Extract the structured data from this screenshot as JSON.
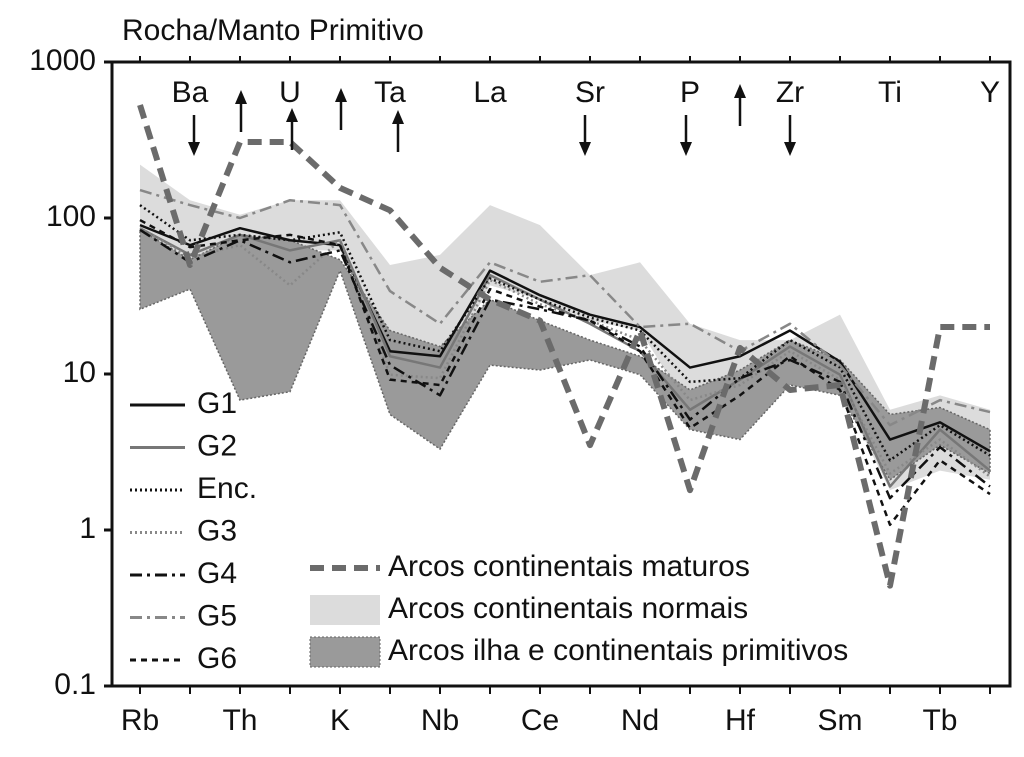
{
  "chart_data": {
    "type": "line",
    "y_label": "Rocha/Manto Primitivo",
    "log_scale": true,
    "categories": [
      "Rb",
      "Ba",
      "Th",
      "U",
      "K",
      "Ta",
      "Nb",
      "La",
      "Ce",
      "Sr",
      "Nd",
      "P",
      "Hf",
      "Zr",
      "Sm",
      "Ti",
      "Tb",
      "Y"
    ],
    "ylim": [
      0.1,
      1000
    ],
    "yticks": [
      0.1,
      1,
      10,
      100,
      1000
    ],
    "series": [
      {
        "name": "G1",
        "color": "#111111",
        "dash": "solid",
        "values": [
          90,
          67,
          86,
          72,
          67,
          14,
          13,
          46,
          32,
          24,
          20,
          11,
          13,
          19,
          12,
          3.8,
          4.9,
          3.2
        ]
      },
      {
        "name": "G2",
        "color": "#777777",
        "dash": "solid",
        "values": [
          86,
          58,
          78,
          62,
          72,
          13,
          11,
          43,
          30,
          21,
          14,
          5.9,
          9.2,
          15,
          9.9,
          1.9,
          4.4,
          2.4
        ]
      },
      {
        "name": "Enc.",
        "color": "#111111",
        "dash": "dotted",
        "values": [
          121,
          72,
          78,
          72,
          81,
          16.5,
          14,
          41,
          30,
          23,
          19,
          8.9,
          9.4,
          16.5,
          11,
          2.8,
          4.7,
          3
        ]
      },
      {
        "name": "G3",
        "color": "#888888",
        "dash": "dotted",
        "values": [
          86,
          56,
          67,
          37,
          72,
          9.9,
          9.4,
          40,
          28,
          22,
          16.5,
          6.8,
          8.5,
          14,
          9.2,
          2.3,
          3.8,
          2.2
        ]
      },
      {
        "name": "G4",
        "color": "#111111",
        "dash": "dashdot",
        "values": [
          84,
          52,
          72,
          52,
          62,
          11.4,
          7.3,
          30,
          26,
          22,
          15,
          5.1,
          9.4,
          12.3,
          8.9,
          1.6,
          3.4,
          1.9
        ]
      },
      {
        "name": "G5",
        "color": "#888888",
        "dash": "dashdot",
        "values": [
          151,
          121,
          100,
          130,
          121,
          34,
          21,
          52,
          39,
          43,
          20,
          21,
          14,
          21,
          11.4,
          4.7,
          6.8,
          5.7
        ]
      },
      {
        "name": "G6",
        "color": "#111111",
        "dash": "dashed",
        "values": [
          97,
          65,
          72,
          78,
          67,
          9.2,
          8.5,
          35,
          27,
          22,
          14,
          4.5,
          7.3,
          13,
          7.9,
          1.08,
          2.8,
          1.7
        ]
      },
      {
        "name": "Arcos continentais maturos",
        "color": "#6b6b6b",
        "dash": "thickdash",
        "values": [
          530,
          50,
          307,
          307,
          156,
          112,
          48,
          30,
          22,
          3.5,
          19,
          1.8,
          14.7,
          7.9,
          8.5,
          0.44,
          20,
          20
        ]
      },
      {
        "name": "Arcos continentais normais",
        "color": "#dcdcdc",
        "dash": "band",
        "high": [
          220,
          130,
          105,
          130,
          130,
          50,
          58,
          121,
          90,
          43,
          52,
          21,
          16.5,
          16.5,
          24,
          5.9,
          7.3,
          5.9
        ],
        "low": [
          72,
          54,
          62,
          62,
          62,
          10.6,
          9.2,
          37,
          30,
          22,
          19,
          5.9,
          6.8,
          12.3,
          7.9,
          1.8,
          2.4,
          2.1
        ]
      },
      {
        "name": "Arcos ilha e continentais primitivos",
        "color": "#9a9a9a",
        "dash": "band",
        "high": [
          84,
          54,
          78,
          72,
          54,
          19,
          15,
          30,
          22,
          16.5,
          13,
          7.9,
          10.6,
          16.5,
          12.3,
          5.5,
          6.1,
          4.4
        ],
        "low": [
          26,
          35,
          6.8,
          7.7,
          46,
          5.5,
          3.3,
          11.4,
          10.6,
          12.3,
          9.9,
          4.4,
          3.8,
          8.5,
          7.3,
          2.1,
          3.5,
          2.3
        ]
      }
    ]
  }
}
